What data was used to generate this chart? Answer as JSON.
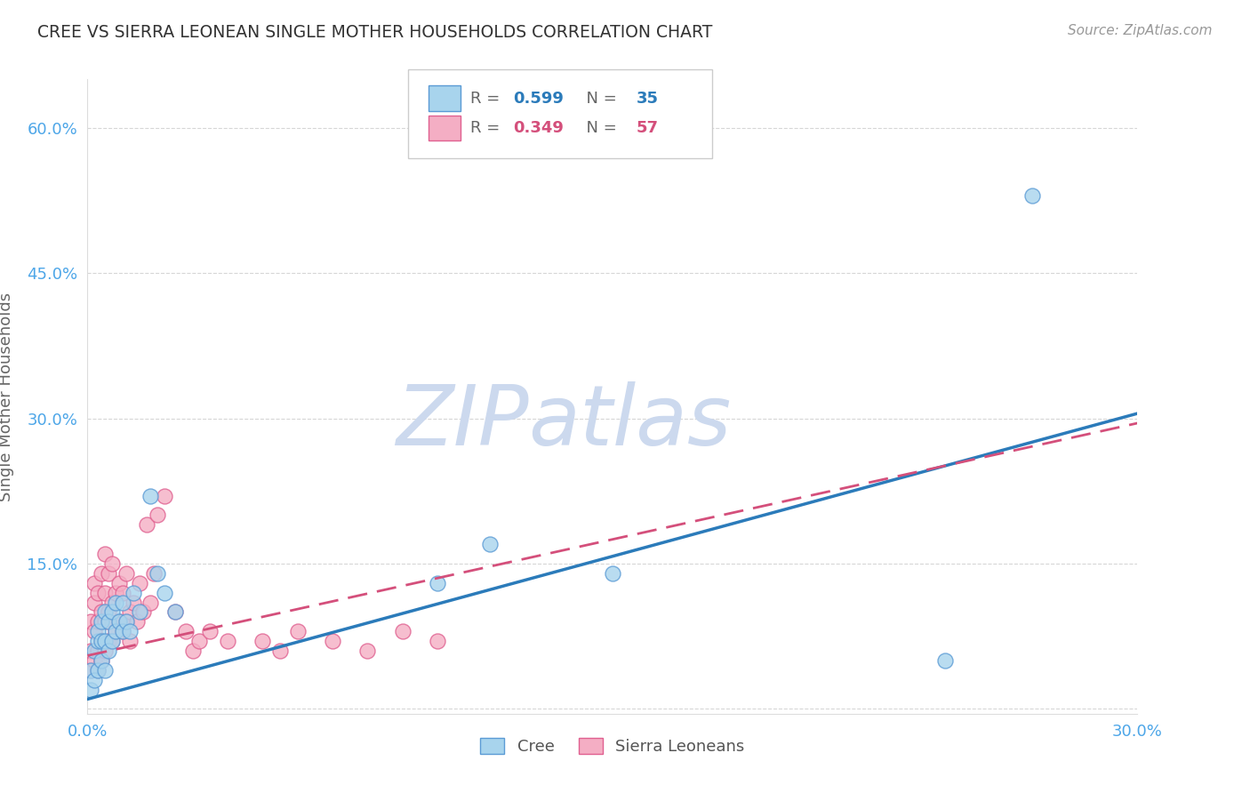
{
  "title": "CREE VS SIERRA LEONEAN SINGLE MOTHER HOUSEHOLDS CORRELATION CHART",
  "source": "Source: ZipAtlas.com",
  "ylabel": "Single Mother Households",
  "xlim": [
    0.0,
    0.3
  ],
  "ylim": [
    -0.005,
    0.65
  ],
  "yticks": [
    0.0,
    0.15,
    0.3,
    0.45,
    0.6
  ],
  "ytick_labels": [
    "",
    "15.0%",
    "30.0%",
    "45.0%",
    "60.0%"
  ],
  "xticks": [
    0.0,
    0.05,
    0.1,
    0.15,
    0.2,
    0.25,
    0.3
  ],
  "xtick_labels": [
    "0.0%",
    "",
    "",
    "",
    "",
    "",
    "30.0%"
  ],
  "cree_R": 0.599,
  "cree_N": 35,
  "sl_R": 0.349,
  "sl_N": 57,
  "cree_color": "#a8d4ed",
  "sl_color": "#f4aec4",
  "cree_edge_color": "#5b9bd5",
  "sl_edge_color": "#e06090",
  "cree_line_color": "#2b7bba",
  "sl_line_color": "#d44f7b",
  "background_color": "#ffffff",
  "grid_color": "#cccccc",
  "tick_label_color": "#4da6e8",
  "title_color": "#333333",
  "watermark_zip_color": "#c8d8f0",
  "watermark_atlas_color": "#c8d8f0",
  "cree_line_start_y": 0.01,
  "cree_line_end_y": 0.305,
  "sl_line_start_y": 0.055,
  "sl_line_end_y": 0.295,
  "cree_x": [
    0.001,
    0.001,
    0.002,
    0.002,
    0.003,
    0.003,
    0.003,
    0.004,
    0.004,
    0.004,
    0.005,
    0.005,
    0.005,
    0.006,
    0.006,
    0.007,
    0.007,
    0.008,
    0.008,
    0.009,
    0.01,
    0.01,
    0.011,
    0.012,
    0.013,
    0.015,
    0.018,
    0.02,
    0.022,
    0.025,
    0.1,
    0.115,
    0.15,
    0.245,
    0.27
  ],
  "cree_y": [
    0.02,
    0.04,
    0.03,
    0.06,
    0.04,
    0.07,
    0.08,
    0.05,
    0.07,
    0.09,
    0.04,
    0.07,
    0.1,
    0.06,
    0.09,
    0.07,
    0.1,
    0.08,
    0.11,
    0.09,
    0.08,
    0.11,
    0.09,
    0.08,
    0.12,
    0.1,
    0.22,
    0.14,
    0.12,
    0.1,
    0.13,
    0.17,
    0.14,
    0.05,
    0.53
  ],
  "sl_x": [
    0.001,
    0.001,
    0.001,
    0.002,
    0.002,
    0.002,
    0.002,
    0.003,
    0.003,
    0.003,
    0.003,
    0.004,
    0.004,
    0.004,
    0.004,
    0.005,
    0.005,
    0.005,
    0.005,
    0.006,
    0.006,
    0.006,
    0.007,
    0.007,
    0.007,
    0.008,
    0.008,
    0.009,
    0.009,
    0.01,
    0.01,
    0.011,
    0.011,
    0.012,
    0.012,
    0.013,
    0.014,
    0.015,
    0.016,
    0.017,
    0.018,
    0.019,
    0.02,
    0.022,
    0.025,
    0.028,
    0.03,
    0.032,
    0.035,
    0.04,
    0.05,
    0.055,
    0.06,
    0.07,
    0.08,
    0.09,
    0.1
  ],
  "sl_y": [
    0.04,
    0.06,
    0.09,
    0.05,
    0.08,
    0.11,
    0.13,
    0.04,
    0.06,
    0.09,
    0.12,
    0.05,
    0.07,
    0.1,
    0.14,
    0.06,
    0.09,
    0.12,
    0.16,
    0.07,
    0.1,
    0.14,
    0.07,
    0.11,
    0.15,
    0.08,
    0.12,
    0.09,
    0.13,
    0.08,
    0.12,
    0.09,
    0.14,
    0.1,
    0.07,
    0.11,
    0.09,
    0.13,
    0.1,
    0.19,
    0.11,
    0.14,
    0.2,
    0.22,
    0.1,
    0.08,
    0.06,
    0.07,
    0.08,
    0.07,
    0.07,
    0.06,
    0.08,
    0.07,
    0.06,
    0.08,
    0.07
  ]
}
